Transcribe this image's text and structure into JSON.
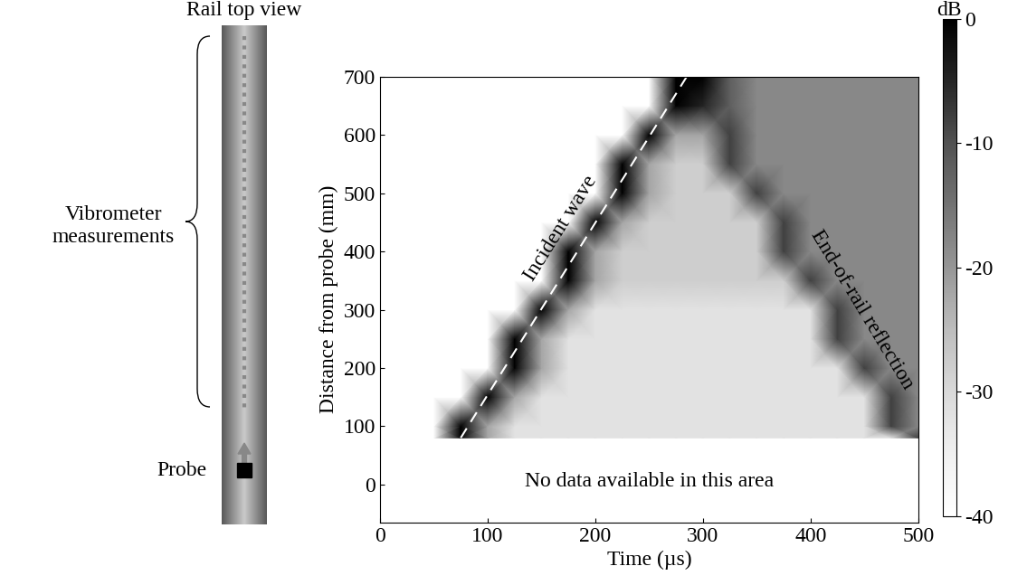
{
  "chart_data": {
    "type": "heatmap",
    "x_label": "Time (µs)",
    "y_label": "Distance from probe (mm)",
    "xlim": [
      0,
      500
    ],
    "xticks": [
      0,
      100,
      200,
      300,
      400,
      500
    ],
    "ylim": [
      -65,
      700
    ],
    "yticks": [
      0,
      100,
      200,
      300,
      400,
      500,
      600,
      700
    ],
    "x": [
      0,
      25,
      50,
      75,
      100,
      125,
      150,
      175,
      200,
      225,
      250,
      275,
      300,
      325,
      350,
      375,
      400,
      425,
      450,
      475,
      500
    ],
    "y": [
      80,
      100,
      150,
      200,
      250,
      300,
      350,
      400,
      450,
      500,
      550,
      600,
      650,
      700
    ],
    "values": [
      [
        -40,
        -40,
        -40,
        0,
        -22,
        -32,
        -32,
        -32,
        -32,
        -32,
        -32,
        -32,
        -32,
        -32,
        -32,
        -32,
        -32,
        -32,
        -32,
        -32,
        -8
      ],
      [
        -40,
        -40,
        -40,
        0,
        -22,
        -32,
        -32,
        -32,
        -32,
        -32,
        -32,
        -32,
        -32,
        -32,
        -32,
        -32,
        -32,
        -32,
        -32,
        -8,
        -18
      ],
      [
        -40,
        -40,
        -40,
        -40,
        0,
        -22,
        -32,
        -32,
        -32,
        -32,
        -32,
        -32,
        -32,
        -32,
        -32,
        -32,
        -32,
        -32,
        -32,
        -8,
        -18
      ],
      [
        -40,
        -40,
        -40,
        -40,
        -40,
        0,
        -22,
        -32,
        -32,
        -32,
        -32,
        -32,
        -32,
        -32,
        -32,
        -32,
        -32,
        -32,
        -8,
        -18,
        -18
      ],
      [
        -40,
        -40,
        -40,
        -40,
        -40,
        0,
        -22,
        -32,
        -32,
        -32,
        -32,
        -32,
        -32,
        -32,
        -32,
        -32,
        -32,
        -8,
        -18,
        -18,
        -18
      ],
      [
        -40,
        -40,
        -40,
        -40,
        -40,
        -40,
        0,
        -22,
        -32,
        -32,
        -32,
        -32,
        -32,
        -32,
        -32,
        -32,
        -32,
        -8,
        -18,
        -18,
        -18
      ],
      [
        -40,
        -40,
        -40,
        -40,
        -40,
        -40,
        -40,
        0,
        -22,
        -28,
        -28,
        -28,
        -28,
        -28,
        -28,
        -28,
        -8,
        -18,
        -18,
        -18,
        -18
      ],
      [
        -40,
        -40,
        -40,
        -40,
        -40,
        -40,
        -40,
        0,
        -22,
        -28,
        -28,
        -28,
        -28,
        -28,
        -28,
        -8,
        -18,
        -18,
        -18,
        -18,
        -18
      ],
      [
        -40,
        -40,
        -40,
        -40,
        -40,
        -40,
        -40,
        -40,
        0,
        -22,
        -28,
        -28,
        -28,
        -28,
        -28,
        -8,
        -18,
        -18,
        -18,
        -18,
        -18
      ],
      [
        -40,
        -40,
        -40,
        -40,
        -40,
        -40,
        -40,
        -40,
        -40,
        0,
        -22,
        -28,
        -28,
        -28,
        -8,
        -18,
        -18,
        -18,
        -18,
        -18,
        -18
      ],
      [
        -40,
        -40,
        -40,
        -40,
        -40,
        -40,
        -40,
        -40,
        -40,
        0,
        -22,
        -28,
        -28,
        -8,
        -18,
        -18,
        -18,
        -18,
        -18,
        -18,
        -18
      ],
      [
        -40,
        -40,
        -40,
        -40,
        -40,
        -40,
        -40,
        -40,
        -40,
        -40,
        0,
        -22,
        -22,
        -8,
        -18,
        -18,
        -18,
        -18,
        -18,
        -18,
        -18
      ],
      [
        -40,
        -40,
        -40,
        -40,
        -40,
        -40,
        -40,
        -40,
        -40,
        -40,
        -40,
        0,
        -5,
        -12,
        -18,
        -18,
        -18,
        -18,
        -18,
        -18,
        -18
      ],
      [
        -40,
        -40,
        -40,
        -40,
        -40,
        -40,
        -40,
        -40,
        -40,
        -40,
        -40,
        0,
        0,
        -12,
        -18,
        -18,
        -18,
        -18,
        -18,
        -18,
        -18
      ]
    ],
    "colorbar_label": "dB",
    "colorbar_range": [
      -40,
      0
    ],
    "colorbar_ticks": [
      0,
      -10,
      -20,
      -30,
      -40
    ],
    "incident_line": {
      "x": [
        75,
        285
      ],
      "y": [
        80,
        700
      ]
    },
    "annotations": [
      "Incident wave",
      "End-of-rail reflection",
      "No data available in this area"
    ]
  },
  "diagram": {
    "title": "Rail top view",
    "measurements_label": "Vibrometer\nmeasurements",
    "probe_label": "Probe"
  }
}
